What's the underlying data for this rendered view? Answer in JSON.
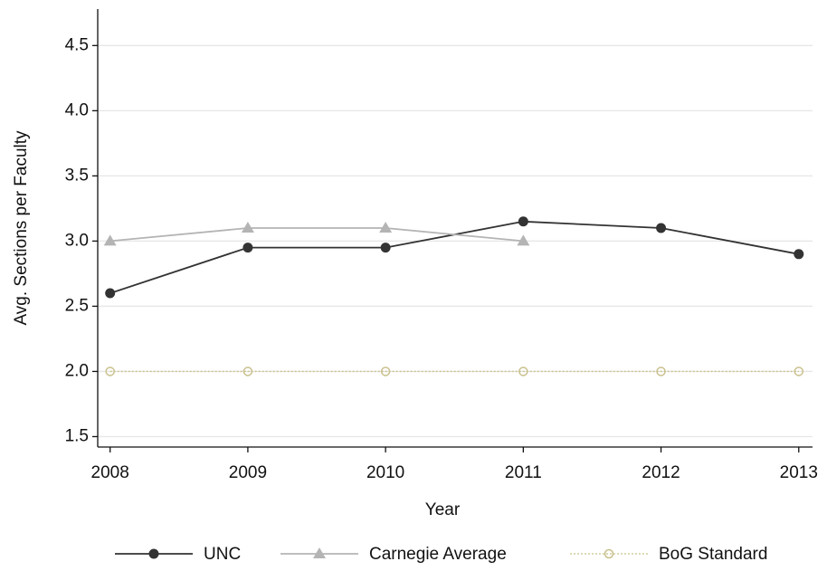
{
  "chart_data": {
    "type": "line",
    "x_label": "Year",
    "y_label": "Avg. Sections per Faculty",
    "x": [
      2008,
      2009,
      2010,
      2011,
      2012,
      2013
    ],
    "xlim": [
      2007.91,
      2013.1
    ],
    "xticks": [
      2008,
      2009,
      2010,
      2011,
      2012,
      2013
    ],
    "ylim": [
      1.42,
      4.78
    ],
    "yticks": [
      1.5,
      {
        "value": 2,
        "label": "2.0"
      },
      2.5,
      {
        "value": 3,
        "label": "3.0"
      },
      3.5,
      {
        "value": 4,
        "label": "4.0"
      },
      4.5
    ],
    "grid": true,
    "legend": "bottom",
    "series": [
      {
        "name": "UNC",
        "color": "#333333",
        "marker": "circle",
        "style": "solid",
        "values": [
          2.6,
          2.95,
          2.95,
          3.15,
          3.1,
          2.9
        ]
      },
      {
        "name": "Carnegie Average",
        "color": "#b4b4b4",
        "marker": "triangle",
        "style": "solid",
        "values": [
          3.0,
          3.1,
          3.1,
          3.0,
          null,
          null
        ]
      },
      {
        "name": "BoG Standard",
        "color": "#c9c08c",
        "marker": "hollow-circle",
        "style": "dotted",
        "values": [
          2,
          2,
          2,
          2,
          2,
          2
        ]
      }
    ]
  }
}
